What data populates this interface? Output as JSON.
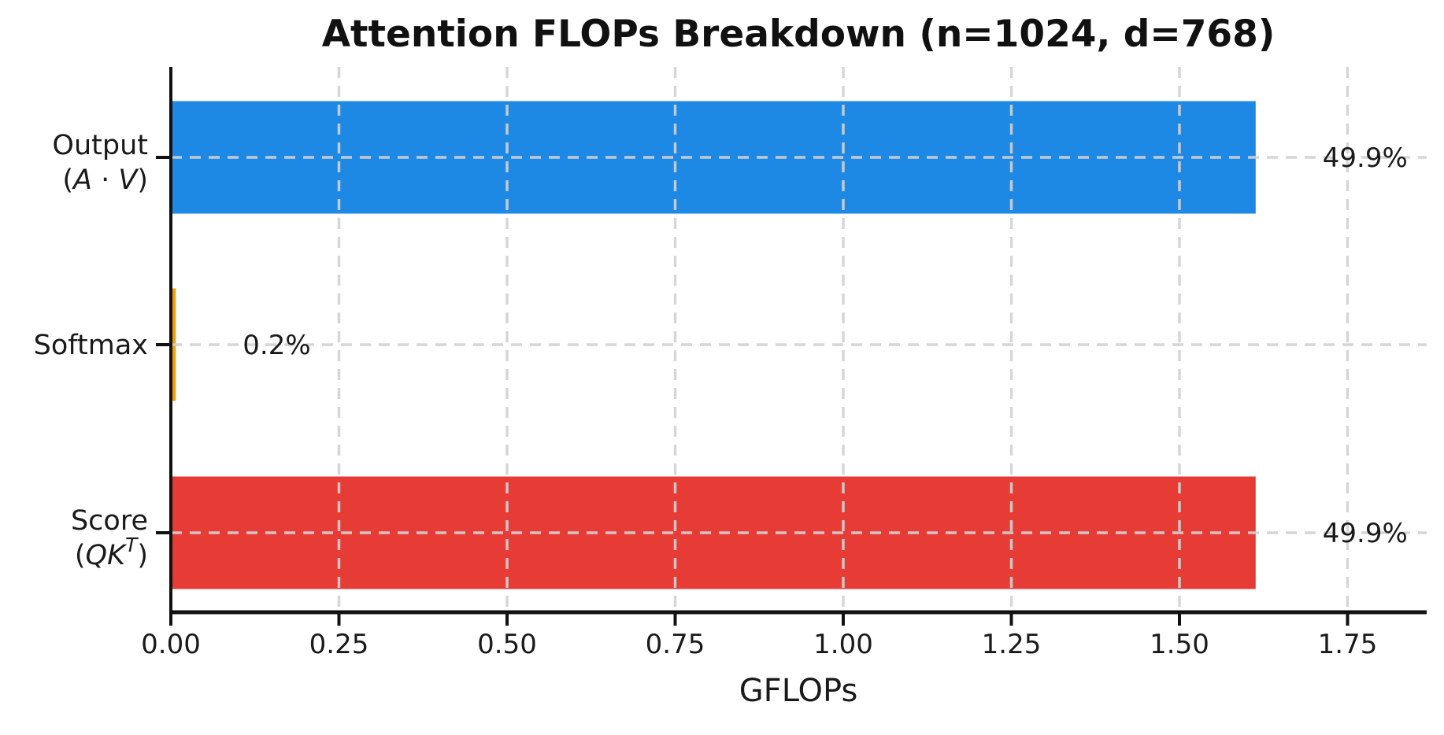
{
  "chart_data": {
    "type": "bar",
    "orientation": "horizontal",
    "title": "Attention FLOPs Breakdown (n=1024, d=768)",
    "xlabel": "GFLOPs",
    "xlim": [
      0,
      1.87
    ],
    "x_ticks": [
      {
        "value": 0.0,
        "label": "0.00"
      },
      {
        "value": 0.25,
        "label": "0.25"
      },
      {
        "value": 0.5,
        "label": "0.50"
      },
      {
        "value": 0.75,
        "label": "0.75"
      },
      {
        "value": 1.0,
        "label": "1.00"
      },
      {
        "value": 1.25,
        "label": "1.25"
      },
      {
        "value": 1.5,
        "label": "1.50"
      },
      {
        "value": 1.75,
        "label": "1.75"
      }
    ],
    "grid": {
      "style": "dashed",
      "axes": "both",
      "color": "#d2d2d2"
    },
    "legend": "none",
    "bars": [
      {
        "category": "Output",
        "category_math": "(A · V)",
        "value_gflops": 1.611,
        "percent_label": "49.9%",
        "color": "#1e88e5"
      },
      {
        "category": "Softmax",
        "category_math": "",
        "value_gflops": 0.005,
        "percent_label": "0.2%",
        "color": "#f59e0b"
      },
      {
        "category": "Score",
        "category_math": "(QK^T)",
        "value_gflops": 1.611,
        "percent_label": "49.9%",
        "color": "#e73b36"
      }
    ],
    "colors": {
      "bar_output": "#1e88e5",
      "bar_softmax": "#f59e0b",
      "bar_score": "#e73b36",
      "gridline": "#d2d2d2",
      "axis": "#111111",
      "text": "#1a1a1a"
    }
  }
}
